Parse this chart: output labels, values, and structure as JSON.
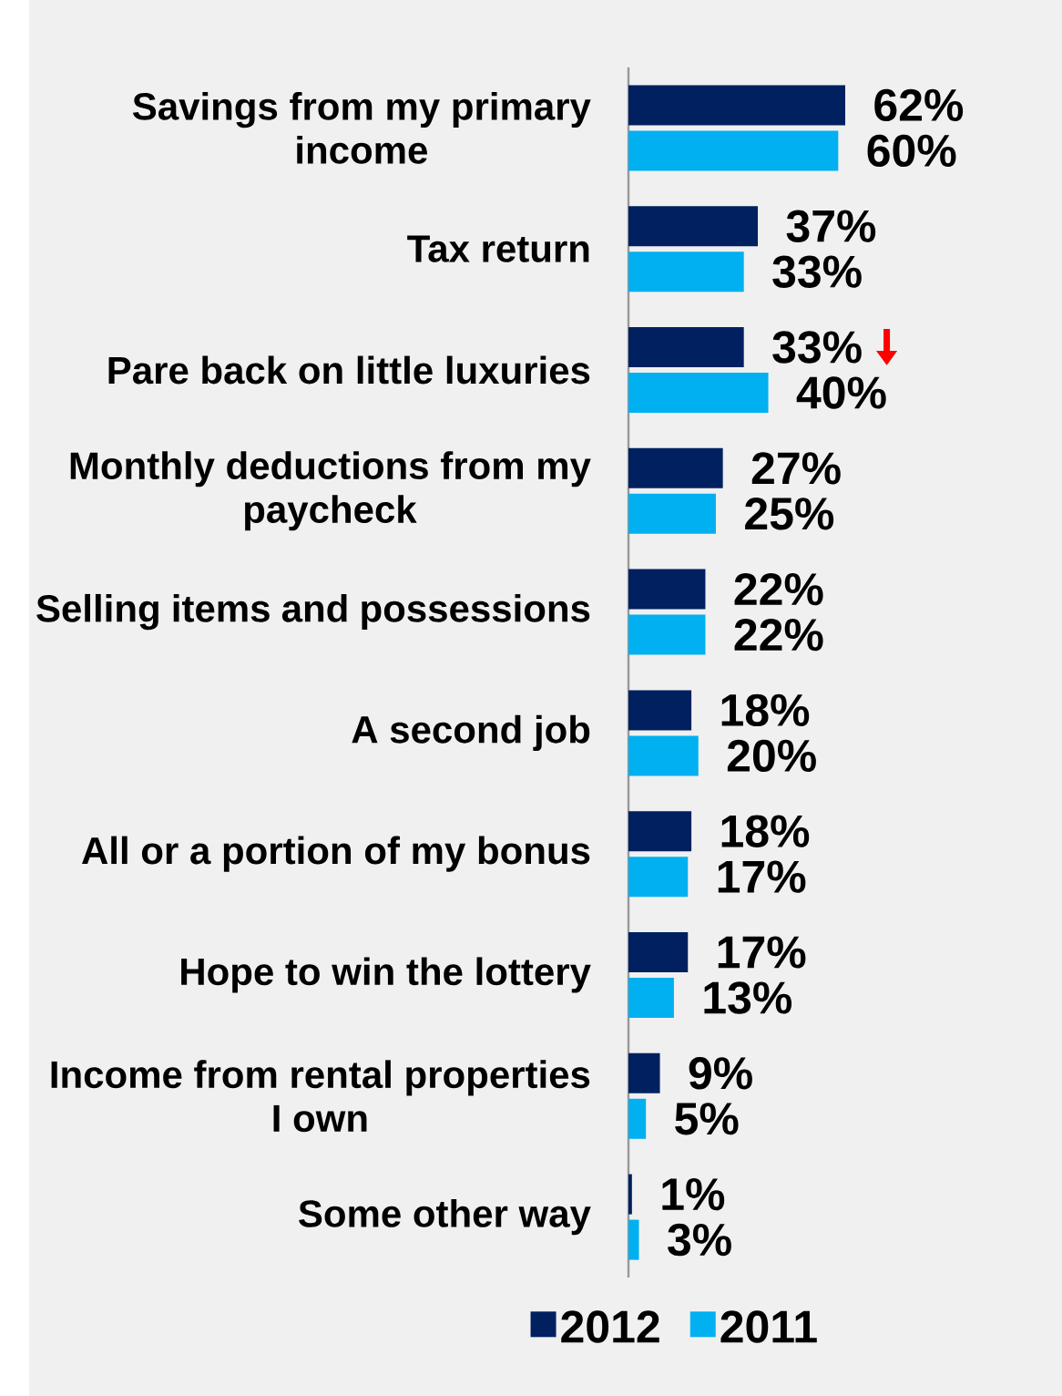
{
  "chart_data": {
    "type": "bar",
    "orientation": "horizontal",
    "legend": "bottom",
    "categories": [
      "Savings from my primary income",
      "Tax return",
      "Pare back on little luxuries",
      "Monthly deductions from my paycheck",
      "Selling items and possessions",
      "A second job",
      "All or a portion of my bonus",
      "Hope to win the lottery",
      "Income from rental properties I own",
      "Some other way"
    ],
    "series": [
      {
        "name": "2012",
        "color": "#002060",
        "values": [
          62,
          37,
          33,
          27,
          22,
          18,
          18,
          17,
          9,
          1
        ],
        "value_labels": [
          "62%",
          "37%",
          "33%",
          "27%",
          "22%",
          "18%",
          "18%",
          "17%",
          "9%",
          "1%"
        ]
      },
      {
        "name": "2011",
        "color": "#00b0f0",
        "values": [
          60,
          33,
          40,
          25,
          22,
          20,
          17,
          13,
          5,
          3
        ],
        "value_labels": [
          "60%",
          "33%",
          "40%",
          "25%",
          "22%",
          "20%",
          "17%",
          "13%",
          "5%",
          "3%"
        ]
      }
    ]
  }
}
